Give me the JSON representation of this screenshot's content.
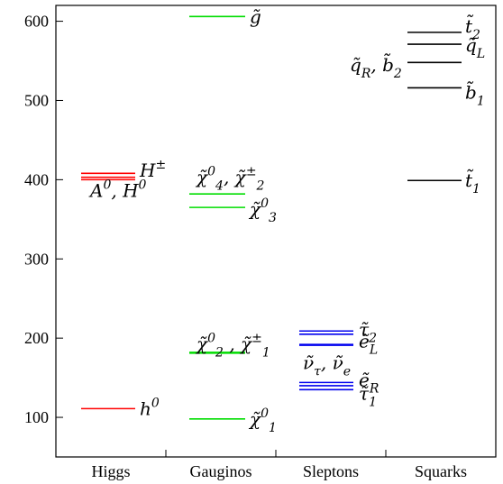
{
  "chart_data": {
    "type": "level-diagram",
    "ylim": [
      50,
      620
    ],
    "yticks": [
      100,
      200,
      300,
      400,
      500,
      600
    ],
    "categories": [
      "Higgs",
      "Gauginos",
      "Sleptons",
      "Squarks"
    ],
    "colors": {
      "Higgs": "#ff0000",
      "Gauginos": "#00dd00",
      "Sleptons": "#0000ee",
      "Squarks": "#000000"
    },
    "levels": [
      {
        "category": "Higgs",
        "value": 111
      },
      {
        "category": "Higgs",
        "value": 400
      },
      {
        "category": "Higgs",
        "value": 403
      },
      {
        "category": "Higgs",
        "value": 408
      },
      {
        "category": "Gauginos",
        "value": 98
      },
      {
        "category": "Gauginos",
        "value": 181
      },
      {
        "category": "Gauginos",
        "value": 182
      },
      {
        "category": "Gauginos",
        "value": 365
      },
      {
        "category": "Gauginos",
        "value": 382
      },
      {
        "category": "Gauginos",
        "value": 606
      },
      {
        "category": "Sleptons",
        "value": 135
      },
      {
        "category": "Sleptons",
        "value": 140
      },
      {
        "category": "Sleptons",
        "value": 144
      },
      {
        "category": "Sleptons",
        "value": 191
      },
      {
        "category": "Sleptons",
        "value": 192
      },
      {
        "category": "Sleptons",
        "value": 205
      },
      {
        "category": "Sleptons",
        "value": 209
      },
      {
        "category": "Squarks",
        "value": 399
      },
      {
        "category": "Squarks",
        "value": 516
      },
      {
        "category": "Squarks",
        "value": 548
      },
      {
        "category": "Squarks",
        "value": 571
      },
      {
        "category": "Squarks",
        "value": 586
      }
    ],
    "labels": [
      {
        "category": "Higgs",
        "value": 111,
        "base": "h",
        "sup": "0"
      },
      {
        "category": "Higgs",
        "value": 412,
        "base": "H",
        "sup": "±"
      },
      {
        "category": "Higgs",
        "value": 386,
        "base": "A",
        "sup": "0",
        "base2": ", H",
        "sup2": "0"
      },
      {
        "category": "Gauginos",
        "value": 98,
        "base": "χ̃",
        "sup": "0",
        "sub": "1"
      },
      {
        "category": "Gauginos",
        "value": 193,
        "base": "χ̃",
        "sup": "0",
        "sub": "2",
        "base2": " , χ̃",
        "sup2": "±",
        "sub2": "1"
      },
      {
        "category": "Gauginos",
        "value": 363,
        "base": "χ̃",
        "sup": "0",
        "sub": "3"
      },
      {
        "category": "Gauginos",
        "value": 403,
        "base": "χ̃",
        "sup": "0",
        "sub": "4",
        "base2": ", χ̃",
        "sup2": "±",
        "sub2": "2"
      },
      {
        "category": "Gauginos",
        "value": 606,
        "base": "g̃"
      },
      {
        "category": "Sleptons",
        "value": 211,
        "base": "τ̃",
        "sub": "2"
      },
      {
        "category": "Sleptons",
        "value": 196,
        "base": "ẽ",
        "sub": "L"
      },
      {
        "category": "Sleptons",
        "value": 169,
        "base": "ν̃",
        "sub": "τ",
        "base2": ", ν̃",
        "sub2": "e"
      },
      {
        "category": "Sleptons",
        "value": 147,
        "base": "ẽ",
        "sub": "R"
      },
      {
        "category": "Sleptons",
        "value": 130,
        "base": "τ̃",
        "sub": "1"
      },
      {
        "category": "Squarks",
        "value": 594,
        "base": "t̃",
        "sub": "2"
      },
      {
        "category": "Squarks",
        "value": 570,
        "base": "q̃",
        "sub": "L"
      },
      {
        "category": "Squarks",
        "value": 545,
        "base": "q̃",
        "sub": "R",
        "base2": ", b̃",
        "sub2": "2"
      },
      {
        "category": "Squarks",
        "value": 510,
        "base": "b̃",
        "sub": "1"
      },
      {
        "category": "Squarks",
        "value": 399,
        "base": "t̃",
        "sub": "1"
      }
    ]
  }
}
